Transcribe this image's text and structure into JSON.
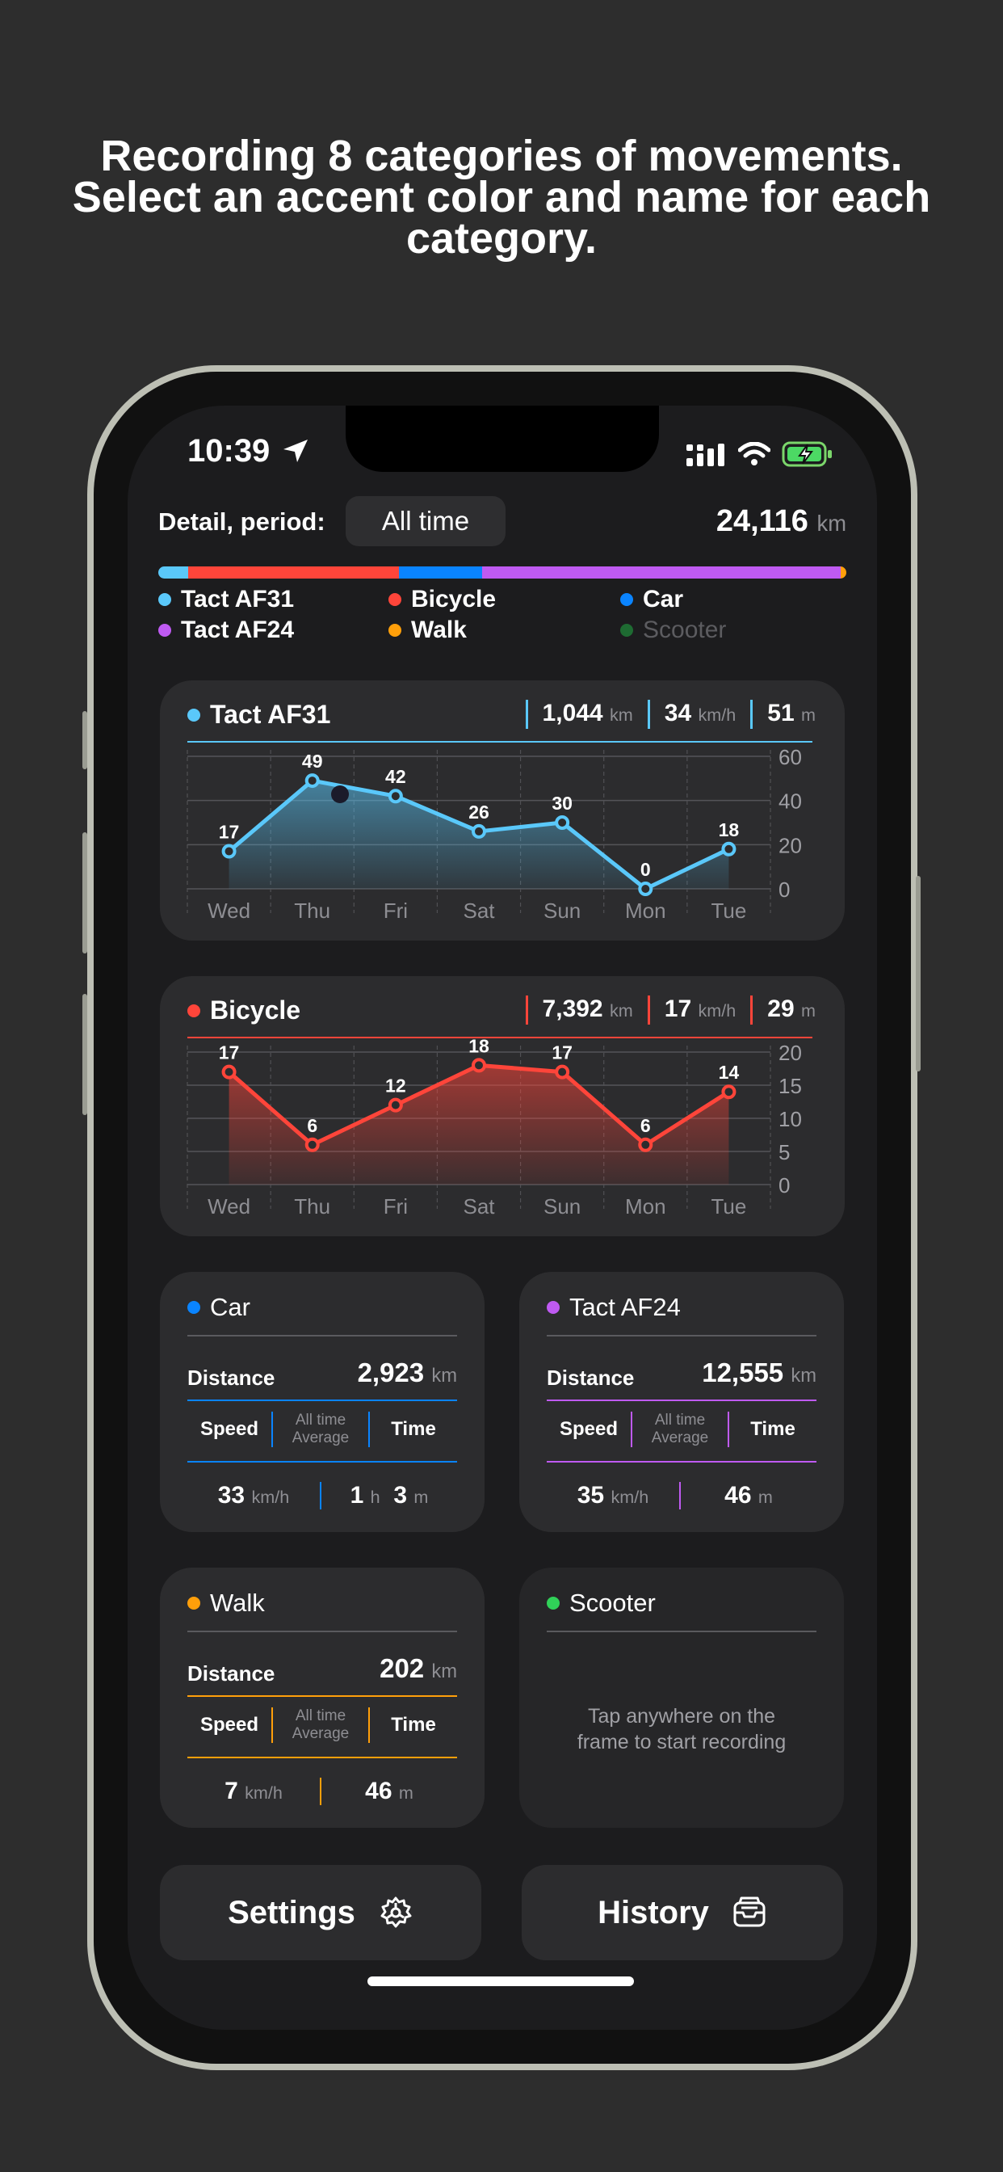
{
  "headline": {
    "line1": "Recording 8 categories of movements.",
    "line2": "Select an accent color and name for each",
    "line3": "category."
  },
  "status": {
    "time": "10:39"
  },
  "period": {
    "label": "Detail, period:",
    "value": "All time"
  },
  "total": {
    "value": "24,116",
    "unit": "km"
  },
  "colors": {
    "tact31": "#5ac8fa",
    "bicycle": "#ff453a",
    "car": "#0a84ff",
    "tact24": "#bf5af2",
    "walk": "#ff9f0a",
    "scooter": "#30d158"
  },
  "distribution_bar": [
    {
      "name": "Tact AF31",
      "fraction": 0.043,
      "color": "#5ac8fa"
    },
    {
      "name": "Bicycle",
      "fraction": 0.307,
      "color": "#ff453a"
    },
    {
      "name": "Car",
      "fraction": 0.121,
      "color": "#0a84ff"
    },
    {
      "name": "Tact AF24",
      "fraction": 0.521,
      "color": "#bf5af2"
    },
    {
      "name": "Walk",
      "fraction": 0.008,
      "color": "#ff9f0a"
    }
  ],
  "legend": [
    {
      "name": "Tact AF31",
      "color": "#5ac8fa"
    },
    {
      "name": "Bicycle",
      "color": "#ff453a"
    },
    {
      "name": "Car",
      "color": "#0a84ff"
    },
    {
      "name": "Tact AF24",
      "color": "#bf5af2"
    },
    {
      "name": "Walk",
      "color": "#ff9f0a"
    },
    {
      "name": "Scooter",
      "color": "#30d158",
      "inactive": true
    }
  ],
  "tact31_card": {
    "title": "Tact AF31",
    "distance": "1,044",
    "distance_unit": "km",
    "speed": "34",
    "speed_unit": "km/h",
    "time": "51",
    "time_unit": "m"
  },
  "bicycle_card": {
    "title": "Bicycle",
    "distance": "7,392",
    "distance_unit": "km",
    "speed": "17",
    "speed_unit": "km/h",
    "time": "29",
    "time_unit": "m"
  },
  "chart_data": [
    {
      "type": "area",
      "title": "Tact AF31",
      "categories": [
        "Wed",
        "Thu",
        "Fri",
        "Sat",
        "Sun",
        "Mon",
        "Tue"
      ],
      "values": [
        17,
        49,
        42,
        26,
        30,
        0,
        18
      ],
      "y_ticks": [
        "60",
        "40",
        "20",
        "0"
      ],
      "ylim": [
        0,
        60
      ],
      "color": "#5ac8fa"
    },
    {
      "type": "area",
      "title": "Bicycle",
      "categories": [
        "Wed",
        "Thu",
        "Fri",
        "Sat",
        "Sun",
        "Mon",
        "Tue"
      ],
      "values": [
        17,
        6,
        12,
        18,
        17,
        6,
        14
      ],
      "y_ticks": [
        "20",
        "15",
        "10",
        "5",
        "0"
      ],
      "ylim": [
        0,
        20
      ],
      "color": "#ff453a"
    }
  ],
  "car_card": {
    "title": "Car",
    "distance_label": "Distance",
    "distance": "2,923",
    "distance_unit": "km",
    "speed_label": "Speed",
    "avg_line1": "All time",
    "avg_line2": "Average",
    "time_label": "Time",
    "speed": "33",
    "speed_unit": "km/h",
    "time_h": "1",
    "time_h_unit": "h",
    "time_m": "3",
    "time_m_unit": "m"
  },
  "tact24_card": {
    "title": "Tact AF24",
    "distance_label": "Distance",
    "distance": "12,555",
    "distance_unit": "km",
    "speed_label": "Speed",
    "avg_line1": "All time",
    "avg_line2": "Average",
    "time_label": "Time",
    "speed": "35",
    "speed_unit": "km/h",
    "time_m": "46",
    "time_m_unit": "m"
  },
  "walk_card": {
    "title": "Walk",
    "distance_label": "Distance",
    "distance": "202",
    "distance_unit": "km",
    "speed_label": "Speed",
    "avg_line1": "All time",
    "avg_line2": "Average",
    "time_label": "Time",
    "speed": "7",
    "speed_unit": "km/h",
    "time_m": "46",
    "time_m_unit": "m"
  },
  "scooter_card": {
    "title": "Scooter",
    "message_line1": "Tap anywhere on the",
    "message_line2": "frame to start recording"
  },
  "actions": {
    "settings": "Settings",
    "history": "History"
  }
}
